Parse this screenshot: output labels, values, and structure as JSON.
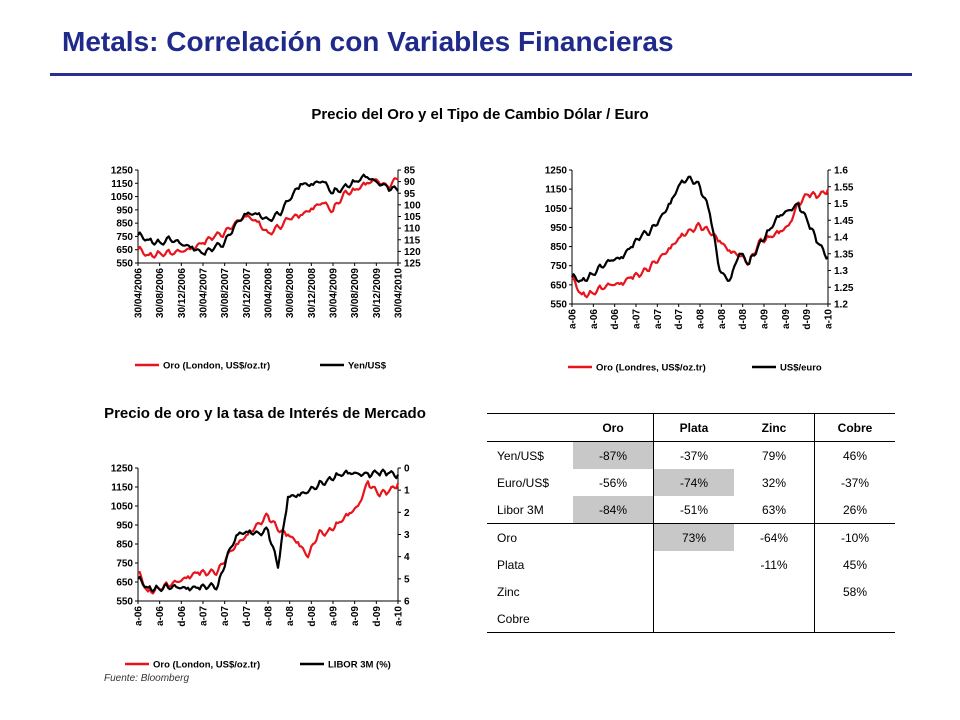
{
  "title": "Metals: Correlación con Variables Financieras",
  "subtitle_top": "Precio del Oro y el Tipo de Cambio Dólar / Euro",
  "subtitle_bottom": "Precio de oro y la tasa de Interés de Mercado",
  "source": "Fuente: Bloomberg",
  "colors": {
    "gold": "#e8141b",
    "other": "#000000",
    "title": "#1f2a8a",
    "shade": "#c8c8c8"
  },
  "chart_data": [
    {
      "type": "line",
      "x_ticks": [
        "30/04/2006",
        "30/08/2006",
        "30/12/2006",
        "30/04/2007",
        "30/08/2007",
        "30/12/2007",
        "30/04/2008",
        "30/08/2008",
        "30/12/2008",
        "30/04/2009",
        "30/08/2009",
        "30/12/2009",
        "30/04/2010"
      ],
      "y_left_ticks": [
        "1250",
        "1150",
        "1050",
        "950",
        "850",
        "750",
        "650",
        "550"
      ],
      "y_left_range": [
        550,
        1250
      ],
      "y_right_ticks": [
        "85",
        "90",
        "95",
        "100",
        "105",
        "110",
        "115",
        "120",
        "125"
      ],
      "y_right_range": [
        85,
        125
      ],
      "y_right_inverted": true,
      "series": [
        {
          "name": "Oro (London, US$/oz.tr)",
          "axis": "left",
          "color": "#e8141b",
          "values": [
            652,
            610,
            628,
            620,
            635,
            665,
            700,
            740,
            780,
            860,
            900,
            860,
            780,
            820,
            880,
            910,
            960,
            1000,
            940,
            1080,
            1100,
            1140,
            1180,
            1130,
            1180
          ]
        },
        {
          "name": "Yen/US$",
          "axis": "right",
          "color": "#000000",
          "values": [
            113,
            115,
            116,
            115,
            117,
            118,
            121,
            119,
            116,
            108,
            104,
            104,
            106,
            104,
            98,
            91,
            91,
            90,
            95,
            92,
            90,
            88,
            90,
            92,
            94
          ]
        }
      ]
    },
    {
      "type": "line",
      "x_ticks": [
        "a-06",
        "a-06",
        "d-06",
        "a-07",
        "a-07",
        "d-07",
        "a-08",
        "a-08",
        "d-08",
        "a-09",
        "a-09",
        "d-09",
        "a-10"
      ],
      "y_left_ticks": [
        "1250",
        "1150",
        "1050",
        "950",
        "850",
        "750",
        "650",
        "550"
      ],
      "y_left_range": [
        550,
        1250
      ],
      "y_right_ticks": [
        "1.6",
        "1.55",
        "1.5",
        "1.45",
        "1.4",
        "1.35",
        "1.3",
        "1.25",
        "1.2"
      ],
      "y_right_range": [
        1.2,
        1.6
      ],
      "series": [
        {
          "name": "Oro (Londres, US$/oz.tr)",
          "axis": "left",
          "color": "#e8141b",
          "values": [
            680,
            600,
            610,
            630,
            650,
            660,
            690,
            700,
            750,
            800,
            840,
            900,
            940,
            960,
            920,
            880,
            830,
            800,
            760,
            880,
            900,
            920,
            960,
            1080,
            1120,
            1110,
            1150
          ]
        },
        {
          "name": "US$/euro",
          "axis": "right",
          "color": "#000000",
          "values": [
            1.28,
            1.27,
            1.29,
            1.31,
            1.33,
            1.34,
            1.37,
            1.4,
            1.42,
            1.46,
            1.5,
            1.56,
            1.58,
            1.55,
            1.47,
            1.3,
            1.27,
            1.35,
            1.32,
            1.38,
            1.42,
            1.46,
            1.48,
            1.5,
            1.44,
            1.38,
            1.34
          ]
        }
      ]
    },
    {
      "type": "line",
      "x_ticks": [
        "a-06",
        "a-06",
        "d-06",
        "a-07",
        "a-07",
        "d-07",
        "a-08",
        "a-08",
        "d-08",
        "a-09",
        "a-09",
        "d-09",
        "a-10"
      ],
      "y_left_ticks": [
        "1250",
        "1150",
        "1050",
        "950",
        "850",
        "750",
        "650",
        "550"
      ],
      "y_left_range": [
        550,
        1250
      ],
      "y_right_ticks": [
        "0",
        "1",
        "2",
        "3",
        "4",
        "5",
        "6"
      ],
      "y_right_range": [
        0,
        6
      ],
      "y_right_inverted": true,
      "series": [
        {
          "name": "Oro (London, US$/oz.tr)",
          "axis": "left",
          "color": "#e8141b",
          "values": [
            700,
            600,
            620,
            630,
            650,
            680,
            700,
            690,
            710,
            800,
            850,
            900,
            960,
            1000,
            920,
            900,
            860,
            780,
            900,
            920,
            960,
            1000,
            1050,
            1180,
            1110,
            1120,
            1170
          ]
        },
        {
          "name": "LIBOR 3M (%)",
          "axis": "right",
          "color": "#000000",
          "values": [
            5.0,
            5.4,
            5.4,
            5.4,
            5.4,
            5.4,
            5.4,
            5.4,
            5.3,
            3.8,
            3.0,
            2.9,
            2.9,
            2.8,
            4.5,
            1.3,
            1.2,
            1.1,
            0.8,
            0.5,
            0.3,
            0.25,
            0.25,
            0.25,
            0.25,
            0.25,
            0.3
          ]
        }
      ]
    }
  ],
  "table": {
    "headers": [
      "",
      "Oro",
      "Plata",
      "Zinc",
      "Cobre"
    ],
    "rows": [
      {
        "label": "Yen/US$",
        "cells": [
          "-87%",
          "-37%",
          "79%",
          "46%"
        ],
        "shaded": [
          true,
          false,
          false,
          false
        ]
      },
      {
        "label": "Euro/US$",
        "cells": [
          "-56%",
          "-74%",
          "32%",
          "-37%"
        ],
        "shaded": [
          false,
          true,
          false,
          false
        ]
      },
      {
        "label": "Libor 3M",
        "cells": [
          "-84%",
          "-51%",
          "63%",
          "26%"
        ],
        "shaded": [
          true,
          false,
          false,
          false
        ]
      },
      {
        "label": "Oro",
        "cells": [
          "",
          "73%",
          "-64%",
          "-10%"
        ],
        "shaded": [
          false,
          true,
          false,
          false
        ]
      },
      {
        "label": "Plata",
        "cells": [
          "",
          "",
          "-11%",
          "45%"
        ],
        "shaded": [
          false,
          false,
          false,
          false
        ]
      },
      {
        "label": "Zinc",
        "cells": [
          "",
          "",
          "",
          "58%"
        ],
        "shaded": [
          false,
          false,
          false,
          false
        ]
      },
      {
        "label": "Cobre",
        "cells": [
          "",
          "",
          "",
          ""
        ],
        "shaded": [
          false,
          false,
          false,
          false
        ]
      }
    ]
  }
}
